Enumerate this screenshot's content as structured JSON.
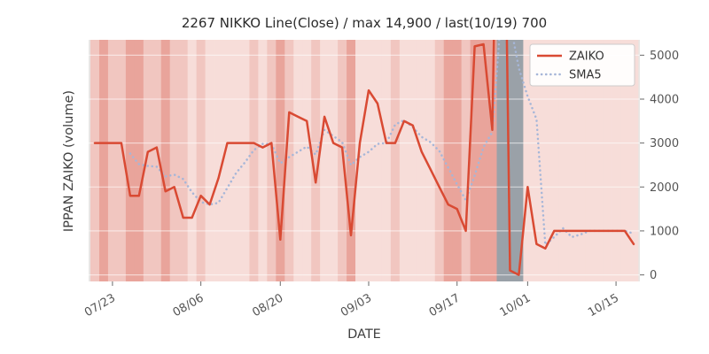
{
  "chart_data": {
    "type": "line",
    "title": "2267 NIKKO Line(Close) / max 14,900 / last(10/19) 700",
    "xlabel": "DATE",
    "ylabel": "IPPAN ZAIKO (volume)",
    "legend_position": "upper right",
    "grid": true,
    "ylim": [
      -150,
      5350
    ],
    "y_ticks": [
      0,
      1000,
      2000,
      3000,
      4000,
      5000
    ],
    "x_ticks": [
      "07/23",
      "08/06",
      "08/20",
      "09/03",
      "09/17",
      "10/01",
      "10/15"
    ],
    "x": [
      "07/21",
      "07/22",
      "07/23",
      "07/24",
      "07/27",
      "07/28",
      "07/29",
      "07/30",
      "07/31",
      "08/03",
      "08/04",
      "08/05",
      "08/06",
      "08/07",
      "08/11",
      "08/12",
      "08/13",
      "08/14",
      "08/17",
      "08/18",
      "08/19",
      "08/20",
      "08/21",
      "08/24",
      "08/25",
      "08/26",
      "08/27",
      "08/28",
      "08/31",
      "09/01",
      "09/02",
      "09/03",
      "09/04",
      "09/07",
      "09/08",
      "09/09",
      "09/10",
      "09/11",
      "09/14",
      "09/15",
      "09/16",
      "09/17",
      "09/18",
      "09/23",
      "09/24",
      "09/25",
      "09/28",
      "09/29",
      "09/30",
      "10/01",
      "10/02",
      "10/05",
      "10/06",
      "10/07",
      "10/08",
      "10/09",
      "10/12",
      "10/13",
      "10/14",
      "10/15",
      "10/16",
      "10/19"
    ],
    "series": [
      {
        "name": "ZAIKO",
        "color": "#d94a33",
        "style": "solid",
        "values": [
          3000,
          3000,
          3000,
          3000,
          1800,
          1800,
          2800,
          2900,
          1900,
          2000,
          1300,
          1300,
          1800,
          1600,
          2200,
          3000,
          3000,
          3000,
          3000,
          2900,
          3000,
          800,
          3700,
          3600,
          3500,
          2100,
          3600,
          3000,
          2900,
          900,
          3000,
          4200,
          3900,
          3000,
          3000,
          3500,
          3400,
          2800,
          2400,
          2000,
          1600,
          1500,
          1000,
          5200,
          5250,
          3300,
          14900,
          100,
          0,
          2000,
          700,
          600,
          1000,
          1000,
          1000,
          1000,
          1000,
          1000,
          1000,
          1000,
          1000,
          700
        ]
      },
      {
        "name": "SMA5",
        "color": "#a6b6d8",
        "style": "dotted",
        "values": [
          null,
          null,
          null,
          null,
          2760,
          2520,
          2480,
          2460,
          2240,
          2280,
          2180,
          1880,
          1660,
          1600,
          1640,
          1980,
          2320,
          2560,
          2840,
          2980,
          2980,
          2540,
          2680,
          2800,
          2920,
          2740,
          3300,
          3160,
          3020,
          2500,
          2680,
          2800,
          2980,
          3000,
          3420,
          3520,
          3360,
          3140,
          3020,
          2820,
          2440,
          2060,
          1700,
          2260,
          2910,
          3250,
          5930,
          5750,
          4710,
          4060,
          3540,
          680,
          860,
          1060,
          860,
          920,
          1000,
          1000,
          1000,
          1000,
          1000,
          940
        ]
      }
    ],
    "background_bands": [
      "m",
      "d",
      "m",
      "m",
      "d",
      "d",
      "m",
      "m",
      "d",
      "m",
      "m",
      "l",
      "m",
      "l",
      "l",
      "l",
      "l",
      "l",
      "m",
      "l",
      "m",
      "d",
      "m",
      "l",
      "l",
      "m",
      "l",
      "l",
      "m",
      "d",
      "l",
      "l",
      "l",
      "l",
      "m",
      "l",
      "l",
      "l",
      "l",
      "m",
      "d",
      "d",
      "m",
      "d",
      "d",
      "d",
      "g",
      "g",
      "g",
      "l",
      "l",
      "l",
      "l",
      "l",
      "l",
      "l",
      "l",
      "l",
      "l",
      "l",
      "l",
      "l"
    ],
    "band_colors": {
      "l": "#f7ddd9",
      "m": "#f1c6c0",
      "d": "#e9a49b",
      "g": "#9aa1a8",
      "base": "#e8e6e4"
    },
    "text_colors": {
      "title": "#2b2b2b",
      "axis_label": "#3f3f3f",
      "tick": "#555555"
    }
  }
}
